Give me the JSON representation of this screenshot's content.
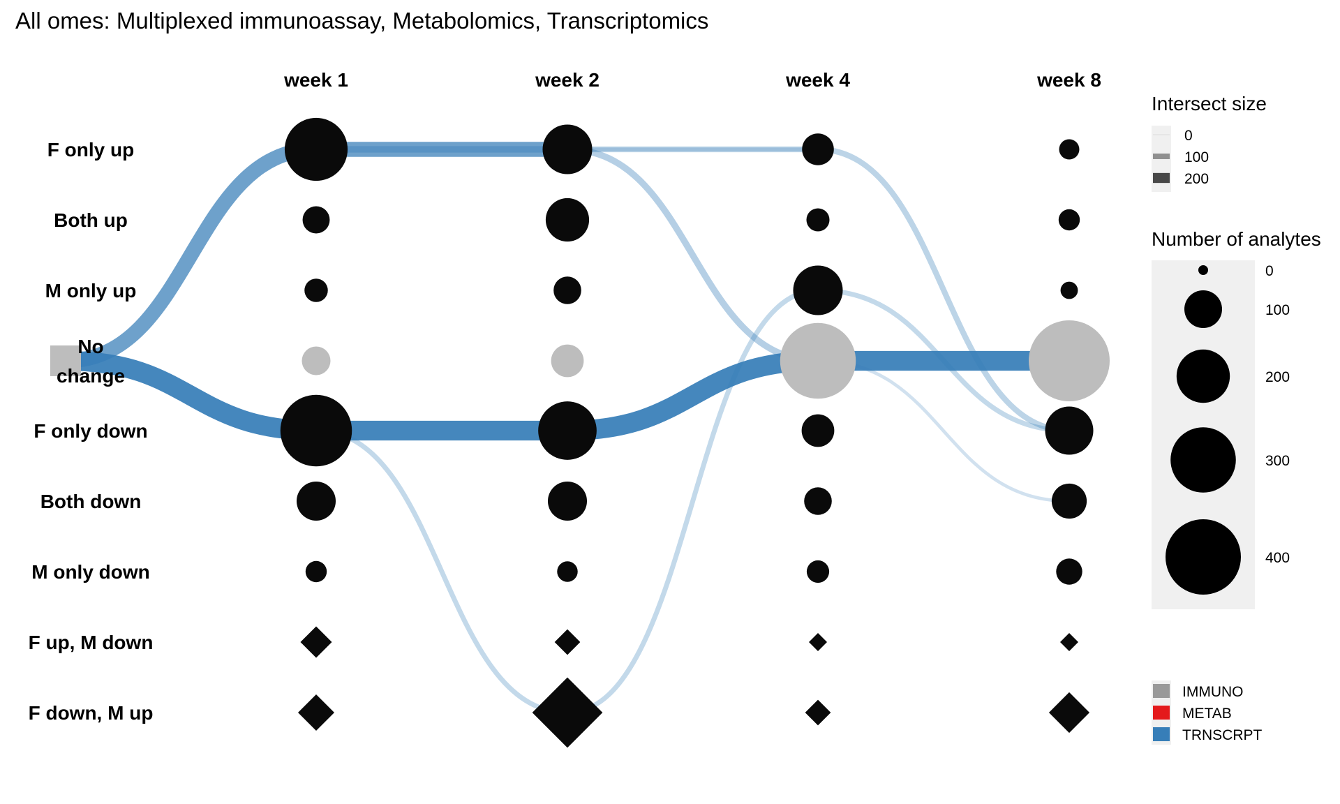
{
  "chart_data": {
    "type": "scatter",
    "title": "All omes: Multiplexed immunoassay, Metabolomics, Transcriptomics",
    "columns": [
      "week 1",
      "week 2",
      "week 4",
      "week 8"
    ],
    "rows": [
      "F only up",
      "Both up",
      "M only up",
      "No change",
      "F only down",
      "Both down",
      "M only down",
      "F up, M down",
      "F down, M up"
    ],
    "row_label_lines": [
      [
        "F only up"
      ],
      [
        "Both up"
      ],
      [
        "M only up"
      ],
      [
        "No",
        "change"
      ],
      [
        "F only down"
      ],
      [
        "Both down"
      ],
      [
        "M only down"
      ],
      [
        "F up, M down"
      ],
      [
        "F down, M up"
      ]
    ],
    "no_change_row": "No change",
    "shape_by_row": [
      "circle",
      "circle",
      "circle",
      "circle",
      "circle",
      "circle",
      "circle",
      "diamond",
      "diamond"
    ],
    "analyte_counts": [
      [
        290,
        180,
        74,
        30
      ],
      [
        54,
        138,
        39,
        33
      ],
      [
        40,
        56,
        180,
        22
      ],
      [
        60,
        78,
        420,
        480
      ],
      [
        375,
        250,
        78,
        170
      ],
      [
        112,
        112,
        56,
        90
      ],
      [
        33,
        31,
        37,
        50
      ],
      [
        3,
        2,
        1,
        1
      ],
      [
        4,
        15,
        2,
        5
      ]
    ],
    "flows": [
      {
        "ome": "TRNSCRPT",
        "path": [
          "No change",
          "F only up",
          "F only up"
        ],
        "from_week": "baseline",
        "intersect_size": 160
      },
      {
        "ome": "TRNSCRPT",
        "path": [
          "No change",
          "F only down",
          "F only down",
          "No change",
          "No change"
        ],
        "from_week": "baseline",
        "intersect_size": 220
      },
      {
        "ome": "TRNSCRPT",
        "path": [
          "F only up",
          "F only up",
          "No change"
        ],
        "from_week": "week 1",
        "intersect_size": 55
      },
      {
        "ome": "TRNSCRPT",
        "path": [
          "F only up",
          "F only up",
          "F only down"
        ],
        "from_week": "week 2",
        "intersect_size": 45
      },
      {
        "ome": "TRNSCRPT",
        "path": [
          "F only up",
          "F only up"
        ],
        "from_week": "week 2",
        "intersect_size": 20
      },
      {
        "ome": "TRNSCRPT",
        "path": [
          "F only down",
          "F down, M up",
          "M only up",
          "F only down"
        ],
        "from_week": "week 1",
        "intersect_size": 35
      },
      {
        "ome": "TRNSCRPT",
        "path": [
          "No change",
          "Both down"
        ],
        "from_week": "week 4",
        "intersect_size": 15
      }
    ],
    "legend": {
      "intersect_title": "Intersect size",
      "intersect_labels": [
        "0",
        "100",
        "200"
      ],
      "intersect_values": [
        0,
        100,
        200
      ],
      "analytes_title": "Number of analytes",
      "analytes_labels": [
        "0",
        "100",
        "200",
        "300",
        "400"
      ],
      "analytes_values": [
        0,
        100,
        200,
        300,
        400
      ],
      "omes": [
        {
          "label": "IMMUNO",
          "color": "#999999"
        },
        {
          "label": "METAB",
          "color": "#E41A1C"
        },
        {
          "label": "TRNSCRPT",
          "color": "#377EB8"
        }
      ]
    },
    "colors": {
      "point": "#0a0a0a",
      "no_change_point": "#bdbdbd",
      "flow": "#377EB8",
      "legend_panel": "#f0f0f0"
    }
  }
}
